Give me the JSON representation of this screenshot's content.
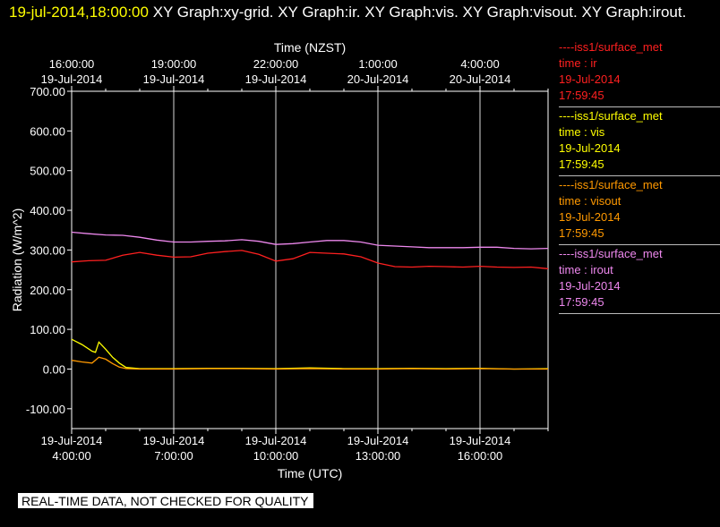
{
  "header": {
    "timestamp": "19-jul-2014,18:00:00",
    "titles": "XY Graph:xy-grid.  XY Graph:ir.  XY Graph:vis.  XY Graph:visout.  XY Graph:irout."
  },
  "disclaimer": "REAL-TIME DATA, NOT CHECKED FOR QUALITY",
  "colors": {
    "background": "#000000",
    "ir": "#ff2020",
    "vis": "#ffff00",
    "visout": "#ff9900",
    "irout": "#ee88ee",
    "grid": "#ffffff"
  },
  "legend": [
    {
      "source": "----iss1/surface_met",
      "field": "time : ir",
      "date": "19-Jul-2014",
      "time": "17:59:45",
      "color": "#ff2020"
    },
    {
      "source": "----iss1/surface_met",
      "field": "time : vis",
      "date": "19-Jul-2014",
      "time": "17:59:45",
      "color": "#ffff00"
    },
    {
      "source": "----iss1/surface_met",
      "field": "time : visout",
      "date": "19-Jul-2014",
      "time": "17:59:45",
      "color": "#ff9900"
    },
    {
      "source": "----iss1/surface_met",
      "field": "time : irout",
      "date": "19-Jul-2014",
      "time": "17:59:45",
      "color": "#ee88ee"
    }
  ],
  "chart_data": {
    "type": "line",
    "title": "",
    "xlabel": "Time (UTC)",
    "x2label": "Time (NZST)",
    "ylabel": "Radiation  (W/m^2)",
    "ylim": [
      -150,
      700
    ],
    "xlim_hours_utc": [
      4.0,
      18.0
    ],
    "grid": "vertical",
    "legend_position": "right",
    "y_ticks": [
      "-100.00",
      "0.00",
      "100.00",
      "200.00",
      "300.00",
      "400.00",
      "500.00",
      "600.00",
      "700.00"
    ],
    "y_tick_values": [
      -100,
      0,
      100,
      200,
      300,
      400,
      500,
      600,
      700
    ],
    "x_ticks_utc": [
      {
        "hour": 4,
        "date": "19-Jul-2014",
        "time": "4:00:00"
      },
      {
        "hour": 7,
        "date": "19-Jul-2014",
        "time": "7:00:00"
      },
      {
        "hour": 10,
        "date": "19-Jul-2014",
        "time": "10:00:00"
      },
      {
        "hour": 13,
        "date": "19-Jul-2014",
        "time": "13:00:00"
      },
      {
        "hour": 16,
        "date": "19-Jul-2014",
        "time": "16:00:00"
      }
    ],
    "x_ticks_nzst": [
      {
        "hour": 4,
        "time": "16:00:00",
        "date": "19-Jul-2014"
      },
      {
        "hour": 7,
        "time": "19:00:00",
        "date": "19-Jul-2014"
      },
      {
        "hour": 10,
        "time": "22:00:00",
        "date": "19-Jul-2014"
      },
      {
        "hour": 13,
        "time": "1:00:00",
        "date": "20-Jul-2014"
      },
      {
        "hour": 16,
        "time": "4:00:00",
        "date": "20-Jul-2014"
      }
    ],
    "series": [
      {
        "key": "irout",
        "color": "#ee88ee",
        "x": [
          4.0,
          4.5,
          5.0,
          5.5,
          6.0,
          6.5,
          7.0,
          7.5,
          8.0,
          8.5,
          9.0,
          9.5,
          10.0,
          10.5,
          11.0,
          11.5,
          12.0,
          12.5,
          13.0,
          13.5,
          14.0,
          14.5,
          15.0,
          15.5,
          16.0,
          16.5,
          17.0,
          17.5,
          18.0
        ],
        "y": [
          345,
          341,
          338,
          337,
          332,
          325,
          320,
          320,
          322,
          323,
          326,
          322,
          314,
          316,
          320,
          324,
          324,
          320,
          312,
          310,
          308,
          306,
          306,
          306,
          307,
          307,
          304,
          303,
          304
        ]
      },
      {
        "key": "ir",
        "color": "#ff2020",
        "x": [
          4.0,
          4.5,
          5.0,
          5.5,
          6.0,
          6.5,
          7.0,
          7.5,
          8.0,
          8.5,
          9.0,
          9.5,
          10.0,
          10.5,
          11.0,
          11.5,
          12.0,
          12.5,
          13.0,
          13.5,
          14.0,
          14.5,
          15.0,
          15.5,
          16.0,
          16.5,
          17.0,
          17.5,
          18.0
        ],
        "y": [
          270,
          273,
          274,
          287,
          294,
          287,
          282,
          283,
          292,
          296,
          299,
          289,
          272,
          278,
          294,
          292,
          290,
          283,
          267,
          258,
          257,
          259,
          258,
          257,
          259,
          257,
          256,
          257,
          253
        ]
      },
      {
        "key": "vis",
        "color": "#ffff00",
        "x": [
          4.0,
          4.3,
          4.6,
          4.7,
          4.8,
          5.0,
          5.2,
          5.4,
          5.6,
          6.0,
          7.0,
          8.0,
          9.0,
          10.0,
          11.0,
          12.0,
          13.0,
          14.0,
          15.0,
          16.0,
          17.0,
          18.0
        ],
        "y": [
          75,
          62,
          45,
          42,
          68,
          50,
          30,
          15,
          4,
          1,
          1,
          2,
          2,
          1,
          3,
          1,
          1,
          2,
          1,
          2,
          0,
          1
        ]
      },
      {
        "key": "visout",
        "color": "#ff9900",
        "x": [
          4.0,
          4.3,
          4.6,
          4.8,
          5.0,
          5.2,
          5.4,
          5.6,
          6.0,
          7.0,
          8.0,
          9.0,
          10.0,
          11.0,
          12.0,
          13.0,
          14.0,
          15.0,
          16.0,
          17.0,
          18.0
        ],
        "y": [
          22,
          18,
          15,
          30,
          25,
          14,
          5,
          1,
          0,
          0,
          1,
          1,
          0,
          1,
          0,
          0,
          1,
          0,
          1,
          0,
          0
        ]
      }
    ]
  }
}
